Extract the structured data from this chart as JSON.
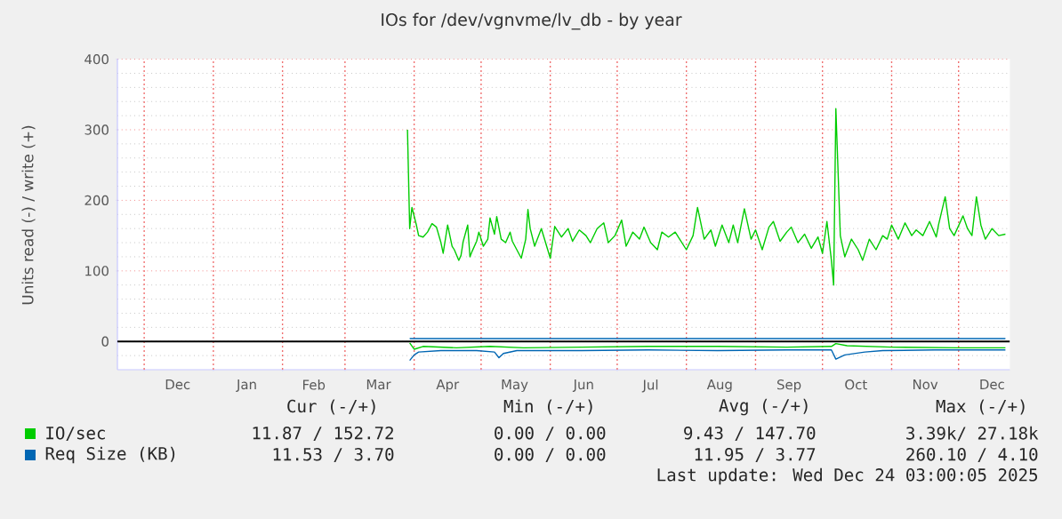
{
  "chart_data": {
    "type": "line",
    "title": "IOs for /dev/vgnvme/lv_db - by year",
    "ylabel": "Units read (-) / write (+)",
    "xlim": [
      "2024-11-19",
      "2025-12-24"
    ],
    "ylim": [
      -40,
      400
    ],
    "xticks": [
      {
        "value": "2024-12-01",
        "label": null
      },
      {
        "value": "2025-01-01",
        "label": null
      },
      {
        "value": "2025-02-01",
        "label": null
      },
      {
        "value": "2025-03-01",
        "label": null
      },
      {
        "value": "2025-04-01",
        "label": null
      },
      {
        "value": "2025-05-01",
        "label": null
      },
      {
        "value": "2025-06-01",
        "label": null
      },
      {
        "value": "2025-07-01",
        "label": null
      },
      {
        "value": "2025-08-01",
        "label": null
      },
      {
        "value": "2025-09-01",
        "label": null
      },
      {
        "value": "2025-10-01",
        "label": null
      },
      {
        "value": "2025-11-01",
        "label": null
      },
      {
        "value": "2025-12-01",
        "label": null
      },
      {
        "value": "2024-12-16",
        "label": "Dec"
      },
      {
        "value": "2025-01-16",
        "label": "Jan"
      },
      {
        "value": "2025-02-15",
        "label": "Feb"
      },
      {
        "value": "2025-03-16",
        "label": "Mar"
      },
      {
        "value": "2025-04-16",
        "label": "Apr"
      },
      {
        "value": "2025-05-16",
        "label": "May"
      },
      {
        "value": "2025-06-16",
        "label": "Jun"
      },
      {
        "value": "2025-07-16",
        "label": "Jul"
      },
      {
        "value": "2025-08-16",
        "label": "Aug"
      },
      {
        "value": "2025-09-16",
        "label": "Sep"
      },
      {
        "value": "2025-10-16",
        "label": "Oct"
      },
      {
        "value": "2025-11-16",
        "label": "Nov"
      },
      {
        "value": "2025-12-16",
        "label": "Dec"
      }
    ],
    "yticks": [
      0,
      100,
      200,
      300,
      400,
      {
        "value": -20,
        "label": null
      },
      {
        "value": 20,
        "label": null
      },
      {
        "value": 40,
        "label": null
      },
      {
        "value": 60,
        "label": null
      },
      {
        "value": 80,
        "label": null
      },
      {
        "value": 120,
        "label": null
      },
      {
        "value": 140,
        "label": null
      },
      {
        "value": 160,
        "label": null
      },
      {
        "value": 180,
        "label": null
      },
      {
        "value": 220,
        "label": null
      },
      {
        "value": 240,
        "label": null
      },
      {
        "value": 260,
        "label": null
      },
      {
        "value": 280,
        "label": null
      },
      {
        "value": 320,
        "label": null
      },
      {
        "value": 340,
        "label": null
      },
      {
        "value": 360,
        "label": null
      },
      {
        "value": 380,
        "label": null
      }
    ],
    "grid": true,
    "legend": "bottom",
    "marker": "none",
    "line_style": "solid",
    "ref_lines": [
      {
        "axis": "y",
        "value": 0,
        "color": "#000000"
      }
    ],
    "series": [
      {
        "name": "IO/sec",
        "color": "#00cc00",
        "x": [
          "2025-03-29",
          "2025-03-30",
          "2025-03-31",
          "2025-04-02",
          "2025-04-03",
          "2025-04-05",
          "2025-04-07",
          "2025-04-09",
          "2025-04-11",
          "2025-04-13",
          "2025-04-14",
          "2025-04-16",
          "2025-04-18",
          "2025-04-19",
          "2025-04-21",
          "2025-04-22",
          "2025-04-23",
          "2025-04-25",
          "2025-04-26",
          "2025-04-27",
          "2025-04-29",
          "2025-04-30",
          "2025-05-02",
          "2025-05-04",
          "2025-05-05",
          "2025-05-07",
          "2025-05-08",
          "2025-05-10",
          "2025-05-12",
          "2025-05-14",
          "2025-05-15",
          "2025-05-17",
          "2025-05-19",
          "2025-05-21",
          "2025-05-22",
          "2025-05-23",
          "2025-05-25",
          "2025-05-28",
          "2025-06-01",
          "2025-06-03",
          "2025-06-06",
          "2025-06-09",
          "2025-06-11",
          "2025-06-14",
          "2025-06-17",
          "2025-06-19",
          "2025-06-22",
          "2025-06-25",
          "2025-06-27",
          "2025-06-30",
          "2025-07-03",
          "2025-07-05",
          "2025-07-08",
          "2025-07-11",
          "2025-07-13",
          "2025-07-16",
          "2025-07-19",
          "2025-07-21",
          "2025-07-24",
          "2025-07-27",
          "2025-07-29",
          "2025-08-01",
          "2025-08-04",
          "2025-08-06",
          "2025-08-09",
          "2025-08-12",
          "2025-08-14",
          "2025-08-17",
          "2025-08-20",
          "2025-08-22",
          "2025-08-24",
          "2025-08-27",
          "2025-08-30",
          "2025-09-01",
          "2025-09-04",
          "2025-09-07",
          "2025-09-09",
          "2025-09-12",
          "2025-09-15",
          "2025-09-17",
          "2025-09-20",
          "2025-09-23",
          "2025-09-26",
          "2025-09-29",
          "2025-10-01",
          "2025-10-03",
          "2025-10-05",
          "2025-10-06",
          "2025-10-07",
          "2025-10-09",
          "2025-10-11",
          "2025-10-14",
          "2025-10-17",
          "2025-10-19",
          "2025-10-22",
          "2025-10-25",
          "2025-10-28",
          "2025-10-30",
          "2025-11-01",
          "2025-11-04",
          "2025-11-07",
          "2025-11-10",
          "2025-11-12",
          "2025-11-15",
          "2025-11-18",
          "2025-11-21",
          "2025-11-22",
          "2025-11-25",
          "2025-11-27",
          "2025-11-29",
          "2025-12-03",
          "2025-12-05",
          "2025-12-07",
          "2025-12-09",
          "2025-12-11",
          "2025-12-13",
          "2025-12-16",
          "2025-12-19",
          "2025-12-22"
        ],
        "values": [
          300,
          160,
          190,
          165,
          150,
          148,
          155,
          167,
          162,
          140,
          125,
          165,
          135,
          130,
          115,
          122,
          142,
          165,
          120,
          128,
          142,
          155,
          135,
          145,
          175,
          152,
          177,
          145,
          140,
          155,
          142,
          130,
          118,
          145,
          187,
          160,
          135,
          160,
          118,
          163,
          148,
          160,
          142,
          158,
          150,
          140,
          160,
          168,
          140,
          150,
          172,
          135,
          155,
          145,
          162,
          140,
          130,
          155,
          148,
          155,
          145,
          130,
          150,
          190,
          145,
          158,
          135,
          165,
          140,
          165,
          140,
          188,
          145,
          158,
          130,
          162,
          170,
          142,
          155,
          162,
          140,
          152,
          132,
          148,
          125,
          170,
          115,
          80,
          330,
          150,
          120,
          145,
          130,
          115,
          145,
          130,
          150,
          145,
          165,
          145,
          168,
          150,
          158,
          150,
          170,
          148,
          165,
          205,
          160,
          150,
          178,
          160,
          150,
          205,
          165,
          145,
          160,
          150,
          152
        ]
      },
      {
        "color": "#00cc00",
        "x": [
          "2025-03-30",
          "2025-04-01",
          "2025-04-05",
          "2025-04-20",
          "2025-05-05",
          "2025-05-20",
          "2025-06-15",
          "2025-07-15",
          "2025-08-15",
          "2025-09-15",
          "2025-10-05",
          "2025-10-07",
          "2025-10-12",
          "2025-11-01",
          "2025-12-01",
          "2025-12-22"
        ],
        "values": [
          -2,
          -11,
          -7,
          -9,
          -7,
          -9,
          -8,
          -7,
          -7,
          -8,
          -7,
          -3,
          -6,
          -8,
          -9,
          -9
        ]
      },
      {
        "name": "Req Size (KB)",
        "color": "#0066b3",
        "x": [
          "2025-03-30",
          "2025-04-01",
          "2025-04-03",
          "2025-04-13",
          "2025-04-29",
          "2025-05-07",
          "2025-05-09",
          "2025-05-11",
          "2025-05-17",
          "2025-06-15",
          "2025-07-15",
          "2025-08-15",
          "2025-09-15",
          "2025-10-05",
          "2025-10-07",
          "2025-10-11",
          "2025-10-20",
          "2025-10-28",
          "2025-11-20",
          "2025-12-22"
        ],
        "values": [
          -27,
          -19,
          -15,
          -13,
          -13,
          -15,
          -23,
          -17,
          -13,
          -13,
          -12,
          -13,
          -12,
          -12,
          -25,
          -19,
          -15,
          -13,
          -12,
          -12
        ]
      },
      {
        "color": "#0066b3",
        "x": [
          "2025-03-30",
          "2025-06-15",
          "2025-10-07",
          "2025-12-22"
        ],
        "values": [
          4,
          4,
          4,
          4
        ]
      }
    ],
    "annotations": [
      "Cur (-/+)",
      "Min (-/+)",
      "Avg (-/+)",
      "Max (-/+)",
      "11.87 / 152.72",
      "0.00 / 0.00",
      "9.43 / 147.70",
      "3.39k/ 27.18k",
      "11.53 / 3.70",
      "0.00 / 0.00",
      "11.95 / 3.77",
      "260.10 / 4.10",
      "Last update: Wed Dec 24 03:00:05 2025"
    ]
  }
}
